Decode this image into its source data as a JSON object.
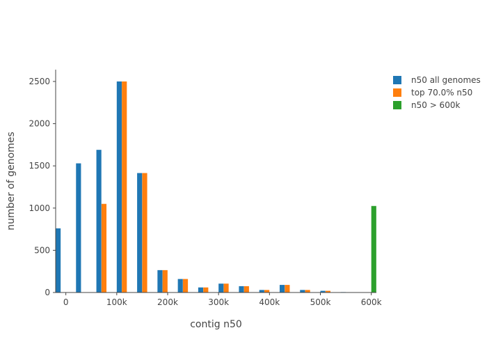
{
  "chart_data": {
    "type": "bar",
    "title": "",
    "xlabel": "contig n50",
    "ylabel": "number of genomes",
    "xlim": [
      -20000,
      610000
    ],
    "ylim": [
      0,
      2640
    ],
    "x_ticks": [
      0,
      100000,
      200000,
      300000,
      400000,
      500000,
      600000
    ],
    "x_tick_labels": [
      "0",
      "100k",
      "200k",
      "300k",
      "400k",
      "500k",
      "600k"
    ],
    "y_ticks": [
      0,
      500,
      1000,
      1500,
      2000,
      2500
    ],
    "y_tick_labels": [
      "0",
      "500",
      "1000",
      "1500",
      "2000",
      "2500"
    ],
    "grid": false,
    "legend_position": "top-right",
    "bin_width": 40000,
    "series": [
      {
        "name": "n50 all genomes",
        "color": "#1f77b4",
        "x": [
          -10000,
          30000,
          70000,
          110000,
          150000,
          190000,
          230000,
          270000,
          310000,
          350000,
          390000,
          430000,
          470000,
          510000,
          550000
        ],
        "values": [
          760,
          1530,
          1690,
          2500,
          1415,
          265,
          160,
          60,
          105,
          75,
          30,
          90,
          30,
          20,
          5
        ]
      },
      {
        "name": "top 70.0% n50",
        "color": "#ff7f0e",
        "x": [
          70000,
          110000,
          150000,
          190000,
          230000,
          270000,
          310000,
          350000,
          390000,
          430000,
          470000,
          510000
        ],
        "values": [
          1050,
          2500,
          1415,
          265,
          160,
          60,
          105,
          75,
          30,
          90,
          30,
          20
        ]
      },
      {
        "name": "n50 > 600k",
        "color": "#2ca02c",
        "x": [
          610000
        ],
        "values": [
          1025
        ]
      }
    ]
  }
}
